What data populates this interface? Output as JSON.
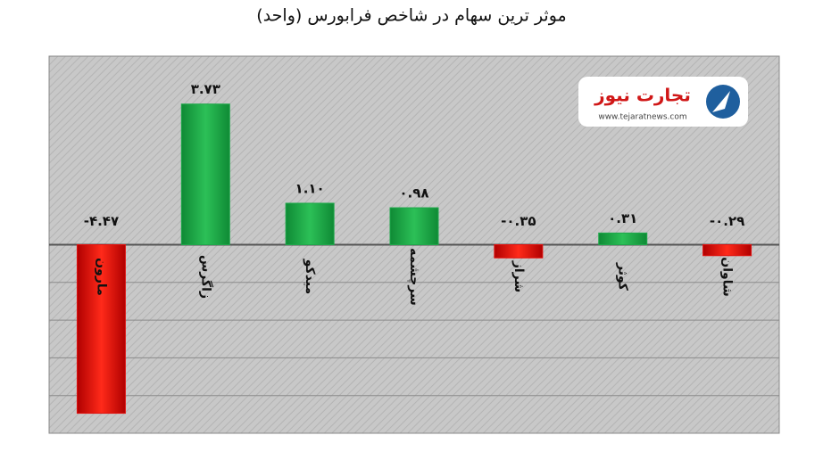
{
  "chart_data": {
    "type": "bar",
    "title": "موثر ترین سهام در شاخص فرابورس (واحد)",
    "categories": [
      "مارون",
      "زاگرس",
      "میدکو",
      "سرچشمه",
      "شراز",
      "کوثر",
      "شاوان"
    ],
    "values": [
      -4.47,
      3.73,
      1.1,
      0.98,
      -0.35,
      0.31,
      -0.29
    ],
    "value_labels": [
      "-۴.۴۷",
      "۳.۷۳",
      "۱.۱۰",
      "۰.۹۸",
      "-۰.۳۵",
      "۰.۳۱",
      "-۰.۲۹"
    ],
    "positive_color": "#1ea84a",
    "negative_color": "#e0120f",
    "ylim": [
      -5,
      5
    ],
    "yticks": [
      -4,
      -3,
      -2,
      -1,
      0
    ],
    "grid": true,
    "watermark": {
      "brand": "تجارت نیوز",
      "url": "www.tejaratnews.com"
    }
  }
}
